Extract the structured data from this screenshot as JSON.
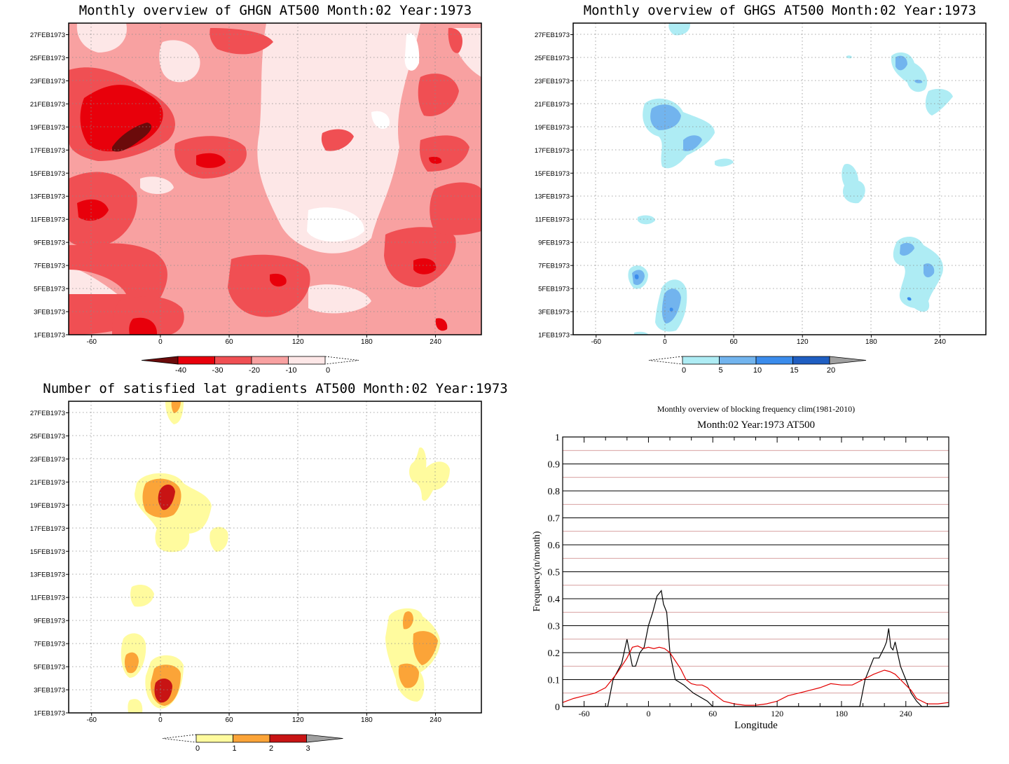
{
  "panels": {
    "ghgn": {
      "title": "Monthly overview of GHGN AT500 Month:02 Year:1973"
    },
    "ghgs": {
      "title": "Monthly overview of GHGS AT500 Month:02 Year:1973"
    },
    "lat": {
      "title": "Number of satisfied lat gradients AT500 Month:02 Year:1973"
    },
    "freq": {
      "title": "Monthly overview of blocking frequency clim(1981-2010)",
      "subtitle": "Month:02 Year:1973  AT500"
    }
  },
  "colorbars": {
    "ghgn": {
      "labels": [
        "-40",
        "-30",
        "-20",
        "-10",
        "0"
      ],
      "colors": [
        "#6b0b0b",
        "#e8000b",
        "#f04f53",
        "#f8a1a1",
        "#fde7e7"
      ]
    },
    "ghgs": {
      "labels": [
        "0",
        "5",
        "10",
        "15",
        "20"
      ],
      "colors": [
        "#aeecf4",
        "#72b4ee",
        "#3b8cec",
        "#1f5ec2",
        "#a0a0a0"
      ]
    },
    "lat": {
      "labels": [
        "0",
        "1",
        "2",
        "3"
      ],
      "colors": [
        "#fffb9e",
        "#fba438",
        "#c81414",
        "#a0a0a0"
      ]
    }
  },
  "chart_data": [
    {
      "type": "heatmap",
      "title": "Monthly overview of GHGN AT500 Month:02 Year:1973",
      "x_ticks": [
        "-60",
        "0",
        "60",
        "120",
        "180",
        "240"
      ],
      "y_ticks": [
        "1FEB1973",
        "3FEB1973",
        "5FEB1973",
        "7FEB1973",
        "9FEB1973",
        "11FEB1973",
        "13FEB1973",
        "15FEB1973",
        "17FEB1973",
        "19FEB1973",
        "21FEB1973",
        "23FEB1973",
        "25FEB1973",
        "27FEB1973"
      ],
      "xlim": [
        -80,
        280
      ],
      "ylim": [
        1,
        28
      ],
      "levels": [
        -40,
        -30,
        -20,
        -10,
        0
      ],
      "grid": true
    },
    {
      "type": "heatmap",
      "title": "Monthly overview of GHGS AT500 Month:02 Year:1973",
      "x_ticks": [
        "-60",
        "0",
        "60",
        "120",
        "180",
        "240"
      ],
      "y_ticks": [
        "1FEB1973",
        "3FEB1973",
        "5FEB1973",
        "7FEB1973",
        "9FEB1973",
        "11FEB1973",
        "13FEB1973",
        "15FEB1973",
        "17FEB1973",
        "19FEB1973",
        "21FEB1973",
        "23FEB1973",
        "25FEB1973",
        "27FEB1973"
      ],
      "xlim": [
        -80,
        280
      ],
      "ylim": [
        1,
        28
      ],
      "levels": [
        0,
        5,
        10,
        15,
        20
      ],
      "grid": true
    },
    {
      "type": "heatmap",
      "title": "Number of satisfied lat gradients AT500 Month:02 Year:1973",
      "x_ticks": [
        "-60",
        "0",
        "60",
        "120",
        "180",
        "240"
      ],
      "y_ticks": [
        "1FEB1973",
        "3FEB1973",
        "5FEB1973",
        "7FEB1973",
        "9FEB1973",
        "11FEB1973",
        "13FEB1973",
        "15FEB1973",
        "17FEB1973",
        "19FEB1973",
        "21FEB1973",
        "23FEB1973",
        "25FEB1973",
        "27FEB1973"
      ],
      "xlim": [
        -80,
        280
      ],
      "ylim": [
        1,
        28
      ],
      "levels": [
        0,
        1,
        2,
        3
      ],
      "grid": true
    },
    {
      "type": "line",
      "title": "Monthly overview of blocking frequency clim(1981-2010)",
      "subtitle": "Month:02 Year:1973  AT500",
      "xlabel": "Longitude",
      "ylabel": "Frequency(n/month)",
      "xlim": [
        -80,
        280
      ],
      "ylim": [
        0,
        1
      ],
      "x_ticks": [
        "-60",
        "0",
        "60",
        "120",
        "180",
        "240"
      ],
      "y_ticks": [
        "0",
        "0.1",
        "0.2",
        "0.3",
        "0.4",
        "0.5",
        "0.6",
        "0.7",
        "0.8",
        "0.9",
        "1"
      ],
      "series": [
        {
          "color": "#000000",
          "x": [
            -80,
            -38,
            -33,
            -25,
            -20,
            -15,
            -12,
            -8,
            -4,
            0,
            4,
            8,
            10,
            12,
            14,
            17,
            20,
            25,
            33,
            42,
            55,
            60,
            65,
            100,
            190,
            197,
            202,
            210,
            215,
            220,
            222,
            224,
            226,
            228,
            230,
            235,
            240,
            245,
            250,
            255,
            280
          ],
          "y": [
            0,
            0,
            0.1,
            0.16,
            0.25,
            0.15,
            0.15,
            0.2,
            0.22,
            0.3,
            0.35,
            0.41,
            0.42,
            0.43,
            0.38,
            0.35,
            0.2,
            0.1,
            0.08,
            0.05,
            0.02,
            0,
            0,
            0,
            0,
            0,
            0.1,
            0.18,
            0.18,
            0.22,
            0.24,
            0.29,
            0.22,
            0.21,
            0.24,
            0.15,
            0.1,
            0.05,
            0.02,
            0,
            0
          ]
        },
        {
          "color": "#e30000",
          "x": [
            -80,
            -70,
            -60,
            -50,
            -40,
            -30,
            -25,
            -20,
            -15,
            -10,
            -5,
            0,
            5,
            10,
            15,
            20,
            25,
            30,
            35,
            40,
            45,
            50,
            55,
            60,
            70,
            80,
            90,
            100,
            110,
            120,
            130,
            140,
            150,
            160,
            170,
            180,
            190,
            200,
            210,
            220,
            225,
            230,
            235,
            240,
            245,
            250,
            260,
            270,
            280
          ],
          "y": [
            0.015,
            0.03,
            0.04,
            0.05,
            0.07,
            0.12,
            0.15,
            0.18,
            0.22,
            0.225,
            0.215,
            0.22,
            0.215,
            0.22,
            0.215,
            0.2,
            0.17,
            0.14,
            0.1,
            0.085,
            0.08,
            0.08,
            0.07,
            0.05,
            0.02,
            0.01,
            0.005,
            0.005,
            0.01,
            0.02,
            0.04,
            0.05,
            0.06,
            0.07,
            0.085,
            0.08,
            0.08,
            0.1,
            0.12,
            0.135,
            0.13,
            0.12,
            0.1,
            0.08,
            0.06,
            0.03,
            0.01,
            0.01,
            0.015
          ]
        }
      ]
    }
  ]
}
